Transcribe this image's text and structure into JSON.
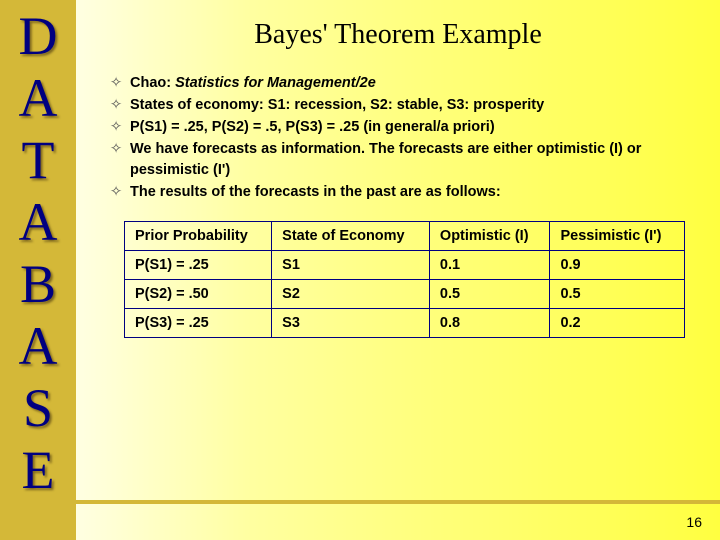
{
  "sidebar_letters": [
    "D",
    "A",
    "T",
    "A",
    "B",
    "A",
    "S",
    "E"
  ],
  "title": "Bayes' Theorem Example",
  "bullets": [
    {
      "text_html": "Chao: <span class='italic'>Statistics for Management/2e</span>"
    },
    {
      "text_html": "States of economy: S1: recession, S2: stable, S3: prosperity"
    },
    {
      "text_html": "P(S1) = .25, P(S2) = .5, P(S3) = .25 (in general/a priori)"
    },
    {
      "text_html": "We have forecasts as information. The forecasts are either optimistic (I) or pessimistic (I')"
    },
    {
      "text_html": "The results of the forecasts in the past are as follows:"
    }
  ],
  "table": {
    "headers": [
      "Prior Probability",
      "State of Economy",
      "Optimistic (I)",
      "Pessimistic (I')"
    ],
    "rows": [
      [
        "P(S1) = .25",
        "S1",
        "0.1",
        "0.9"
      ],
      [
        "P(S2) = .50",
        "S2",
        "0.5",
        "0.5"
      ],
      [
        "P(S3) = .25",
        "S3",
        "0.8",
        "0.2"
      ]
    ]
  },
  "page_number": "16",
  "colors": {
    "sidebar_bg": "#d4b838",
    "letter_color": "#000080",
    "border_color": "#000080"
  }
}
